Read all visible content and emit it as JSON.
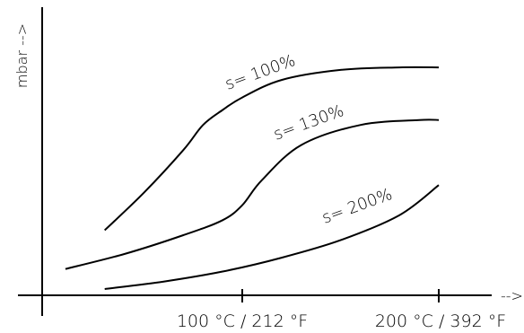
{
  "chart_data": {
    "type": "line",
    "title": "",
    "xlabel": "-->",
    "ylabel": "mbar -->",
    "x_ticks": [
      {
        "x": 100,
        "label": "100 °C / 212 °F"
      },
      {
        "x": 200,
        "label": "200 °C / 392 °F"
      }
    ],
    "xlim": [
      -10,
      235
    ],
    "ylim": [
      0,
      100
    ],
    "grid": false,
    "legend": "none",
    "series": [
      {
        "name": "s= 100%",
        "x": [
          30,
          50,
          70,
          80,
          90,
          100,
          120,
          150,
          180,
          200
        ],
        "y": [
          26,
          41,
          58,
          68,
          74,
          79,
          86,
          90,
          91,
          91
        ]
      },
      {
        "name": "s= 130%",
        "x": [
          10,
          40,
          70,
          90,
          100,
          110,
          130,
          160,
          190,
          200
        ],
        "y": [
          10.5,
          16.5,
          24,
          30,
          36,
          46,
          60,
          68,
          70,
          70
        ]
      },
      {
        "name": "s= 200%",
        "x": [
          30,
          60,
          90,
          120,
          150,
          180,
          200
        ],
        "y": [
          2.5,
          5.5,
          9.5,
          15,
          22,
          32,
          44
        ]
      }
    ]
  }
}
